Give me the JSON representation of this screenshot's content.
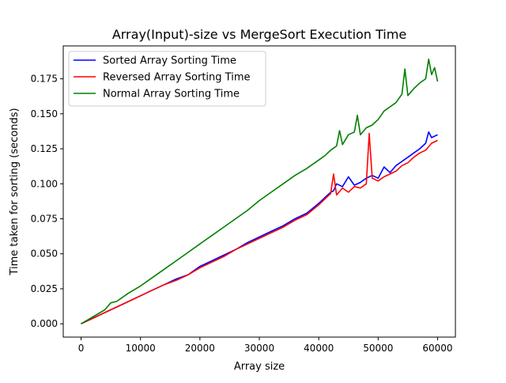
{
  "chart_data": {
    "type": "line",
    "title": "Array(Input)-size vs MergeSort Execution Time",
    "xlabel": "Array size",
    "ylabel": "Time taken for sorting (seconds)",
    "xlim": [
      -3000,
      63000
    ],
    "ylim": [
      -0.0095,
      0.1985
    ],
    "xticks": [
      0,
      10000,
      20000,
      30000,
      40000,
      50000,
      60000
    ],
    "xtick_labels": [
      "0",
      "10000",
      "20000",
      "30000",
      "40000",
      "50000",
      "60000"
    ],
    "yticks": [
      0.0,
      0.025,
      0.05,
      0.075,
      0.1,
      0.125,
      0.15,
      0.175
    ],
    "ytick_labels": [
      "0.000",
      "0.025",
      "0.050",
      "0.075",
      "0.100",
      "0.125",
      "0.150",
      "0.175"
    ],
    "grid": false,
    "legend_position": "upper-left",
    "series": [
      {
        "name": " Sorted Array Sorting Time",
        "color": "#0000ff",
        "x": [
          0,
          2000,
          4000,
          6000,
          8000,
          10000,
          12000,
          14000,
          16000,
          18000,
          20000,
          22000,
          24000,
          26000,
          28000,
          30000,
          32000,
          34000,
          36000,
          38000,
          40000,
          41000,
          42000,
          42500,
          43000,
          44000,
          45000,
          46000,
          47000,
          48000,
          49000,
          50000,
          51000,
          52000,
          53000,
          54000,
          55000,
          56000,
          57000,
          58000,
          58500,
          59000,
          60000
        ],
        "y": [
          0.0,
          0.004,
          0.008,
          0.012,
          0.016,
          0.02,
          0.024,
          0.028,
          0.032,
          0.035,
          0.041,
          0.045,
          0.049,
          0.053,
          0.058,
          0.062,
          0.066,
          0.07,
          0.075,
          0.079,
          0.086,
          0.09,
          0.094,
          0.095,
          0.1,
          0.098,
          0.105,
          0.099,
          0.101,
          0.104,
          0.106,
          0.104,
          0.112,
          0.108,
          0.113,
          0.116,
          0.119,
          0.122,
          0.125,
          0.129,
          0.137,
          0.133,
          0.135
        ]
      },
      {
        "name": "Reversed Array Sorting Time",
        "color": "#ff0000",
        "x": [
          0,
          2000,
          4000,
          6000,
          8000,
          10000,
          12000,
          14000,
          16000,
          18000,
          20000,
          22000,
          24000,
          26000,
          28000,
          30000,
          32000,
          34000,
          36000,
          38000,
          40000,
          41000,
          42000,
          42500,
          43000,
          44000,
          45000,
          46000,
          47000,
          48000,
          48500,
          49000,
          50000,
          51000,
          52000,
          53000,
          54000,
          55000,
          56000,
          57000,
          58000,
          59000,
          60000
        ],
        "y": [
          0.0,
          0.004,
          0.008,
          0.012,
          0.016,
          0.02,
          0.024,
          0.028,
          0.031,
          0.035,
          0.04,
          0.044,
          0.048,
          0.053,
          0.057,
          0.061,
          0.065,
          0.069,
          0.074,
          0.078,
          0.085,
          0.089,
          0.093,
          0.107,
          0.092,
          0.097,
          0.094,
          0.098,
          0.097,
          0.1,
          0.136,
          0.104,
          0.102,
          0.105,
          0.107,
          0.109,
          0.113,
          0.115,
          0.119,
          0.122,
          0.124,
          0.129,
          0.131
        ]
      },
      {
        "name": "Normal Array Sorting Time",
        "color": "#008000",
        "x": [
          0,
          2000,
          4000,
          5000,
          6000,
          8000,
          10000,
          12000,
          14000,
          16000,
          18000,
          20000,
          22000,
          24000,
          26000,
          28000,
          30000,
          32000,
          34000,
          36000,
          38000,
          40000,
          41000,
          42000,
          43000,
          43500,
          44000,
          45000,
          46000,
          46500,
          47000,
          48000,
          49000,
          50000,
          51000,
          52000,
          53000,
          54000,
          54500,
          55000,
          56000,
          57000,
          58000,
          58500,
          59000,
          59500,
          60000
        ],
        "y": [
          0.0,
          0.005,
          0.01,
          0.015,
          0.016,
          0.022,
          0.027,
          0.033,
          0.039,
          0.045,
          0.051,
          0.057,
          0.063,
          0.069,
          0.075,
          0.081,
          0.088,
          0.094,
          0.1,
          0.106,
          0.111,
          0.117,
          0.12,
          0.124,
          0.127,
          0.138,
          0.128,
          0.135,
          0.137,
          0.149,
          0.135,
          0.14,
          0.142,
          0.146,
          0.152,
          0.155,
          0.158,
          0.164,
          0.182,
          0.163,
          0.168,
          0.172,
          0.175,
          0.189,
          0.178,
          0.183,
          0.173
        ]
      }
    ]
  }
}
